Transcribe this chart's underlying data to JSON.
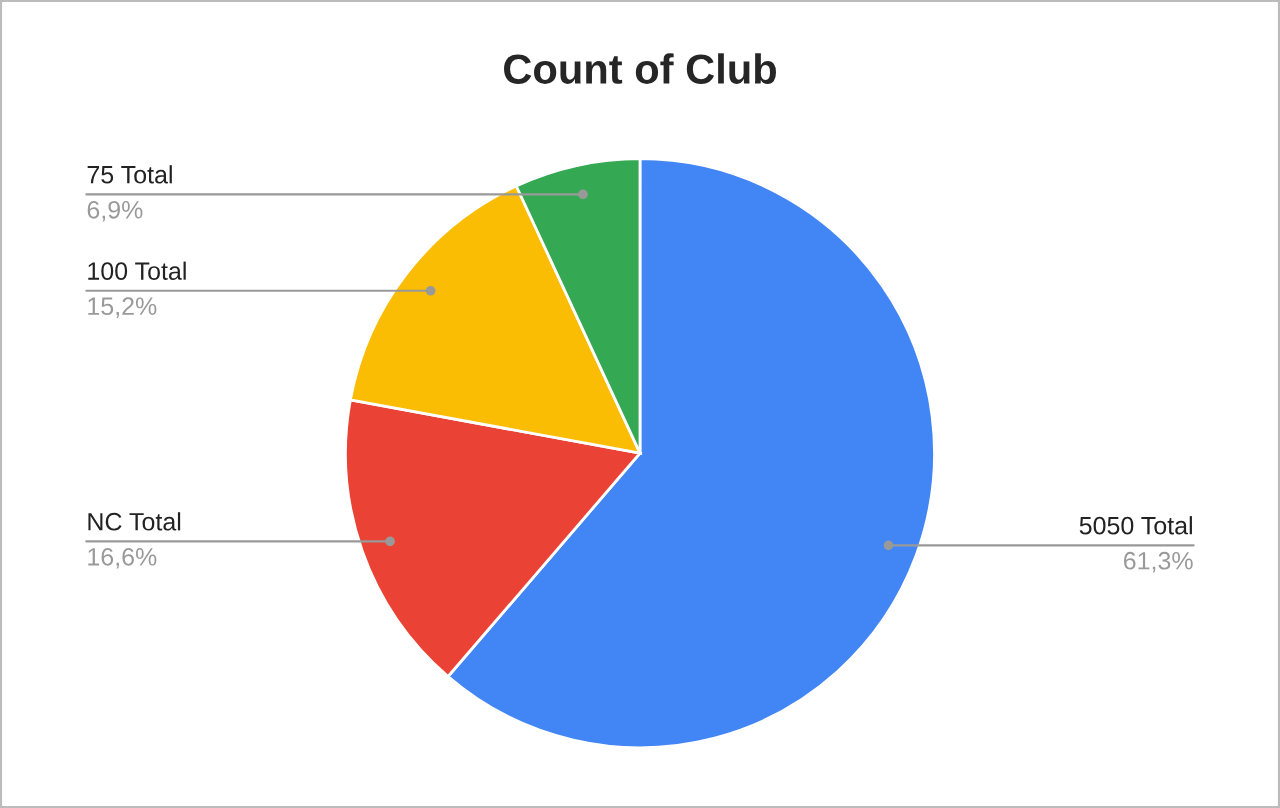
{
  "chart_data": {
    "type": "pie",
    "title": "Count of Club",
    "categories": [
      "5050 Total",
      "NC Total",
      "100 Total",
      "75 Total"
    ],
    "values": [
      61.3,
      16.6,
      15.2,
      6.9
    ],
    "colors": [
      "#4285f4",
      "#ea4335",
      "#fbbc04",
      "#34a853"
    ],
    "value_labels": [
      "61,3%",
      "16,6%",
      "15,2%",
      "6,9%"
    ],
    "legend": false
  }
}
